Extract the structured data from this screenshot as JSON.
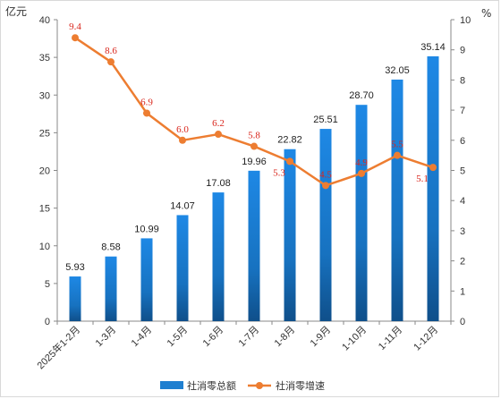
{
  "chart_data": {
    "type": "bar+line",
    "categories": [
      "2025年1-2月",
      "1-3月",
      "1-4月",
      "1-5月",
      "1-6月",
      "1-7月",
      "1-8月",
      "1-9月",
      "1-10月",
      "1-11月",
      "1-12月"
    ],
    "series": [
      {
        "name": "社消零总额",
        "type": "bar",
        "axis": "left",
        "values": [
          5.93,
          8.58,
          10.99,
          14.07,
          17.08,
          19.96,
          22.82,
          25.51,
          28.7,
          32.05,
          35.14
        ],
        "labels": [
          "5.93",
          "8.58",
          "10.99",
          "14.07",
          "17.08",
          "19.96",
          "22.82",
          "25.51",
          "28.70",
          "32.05",
          "35.14"
        ],
        "color": "#1f7fd0"
      },
      {
        "name": "社消零增速",
        "type": "line",
        "axis": "right",
        "values": [
          9.4,
          8.6,
          6.9,
          6.0,
          6.2,
          5.8,
          5.3,
          4.5,
          4.9,
          5.5,
          5.1
        ],
        "labels": [
          "9.4",
          "8.6",
          "6.9",
          "6.0",
          "6.2",
          "5.8",
          "5.3",
          "4.5",
          "4.9",
          "5.5",
          "5.1"
        ],
        "color": "#ed7d31",
        "label_color": "#d9261c"
      }
    ],
    "ylabel_left": "亿元",
    "ylabel_right": "%",
    "ylim_left": [
      0,
      40
    ],
    "ylim_right": [
      0,
      10
    ],
    "yticks_left": [
      "0",
      "5",
      "10",
      "15",
      "20",
      "25",
      "30",
      "35",
      "40"
    ],
    "yticks_right": [
      "0",
      "1",
      "2",
      "3",
      "4",
      "5",
      "6",
      "7",
      "8",
      "9",
      "10"
    ],
    "grid": false,
    "legend_position": "bottom-center"
  }
}
